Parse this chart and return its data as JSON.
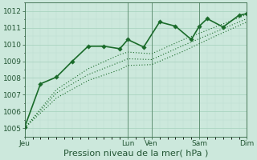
{
  "title": "Pression niveau de la mer( hPa )",
  "background_color": "#cce8dc",
  "plot_bg_color": "#cce8dc",
  "grid_major_color": "#aad4c0",
  "grid_minor_color": "#bbddd0",
  "line_color": "#1a6b2a",
  "ylim": [
    1004.5,
    1012.5
  ],
  "yticks": [
    1005,
    1006,
    1007,
    1008,
    1009,
    1010,
    1011,
    1012
  ],
  "x_tick_labels": [
    "Jeu",
    "Lun",
    "Ven",
    "Sam",
    "Dim"
  ],
  "x_tick_positions": [
    0,
    13,
    16,
    22,
    28
  ],
  "xlim": [
    0,
    28
  ],
  "vlines_x": [
    13,
    16,
    22,
    28
  ],
  "vline_color": "#336644",
  "tick_fontsize": 6.5,
  "xlabel_fontsize": 8,
  "label_color": "#225533",
  "line_main": {
    "x": [
      0,
      2,
      4,
      6,
      8,
      10,
      12,
      13,
      15,
      17,
      19,
      21,
      22,
      23,
      25,
      27,
      28
    ],
    "y": [
      1005.05,
      1007.65,
      1008.05,
      1009.0,
      1009.9,
      1009.9,
      1009.75,
      1010.3,
      1009.85,
      1011.35,
      1011.1,
      1010.3,
      1011.1,
      1011.55,
      1011.05,
      1011.75,
      1011.85
    ],
    "linewidth": 1.2,
    "marker": "D",
    "markersize": 2.8
  },
  "line_smooth1": {
    "x": [
      0,
      4,
      8,
      12,
      13,
      16,
      20,
      24,
      28
    ],
    "y": [
      1005.0,
      1007.3,
      1008.55,
      1009.4,
      1009.55,
      1009.45,
      1010.3,
      1011.05,
      1011.8
    ],
    "linewidth": 0.8
  },
  "line_smooth2": {
    "x": [
      0,
      4,
      8,
      12,
      13,
      16,
      20,
      24,
      28
    ],
    "y": [
      1005.0,
      1007.1,
      1008.2,
      1008.95,
      1009.15,
      1009.1,
      1009.95,
      1010.75,
      1011.55
    ],
    "linewidth": 0.8
  },
  "line_smooth3": {
    "x": [
      0,
      4,
      8,
      12,
      13,
      16,
      20,
      24,
      28
    ],
    "y": [
      1005.0,
      1006.8,
      1007.85,
      1008.5,
      1008.75,
      1008.8,
      1009.6,
      1010.5,
      1011.35
    ],
    "linewidth": 0.8
  }
}
